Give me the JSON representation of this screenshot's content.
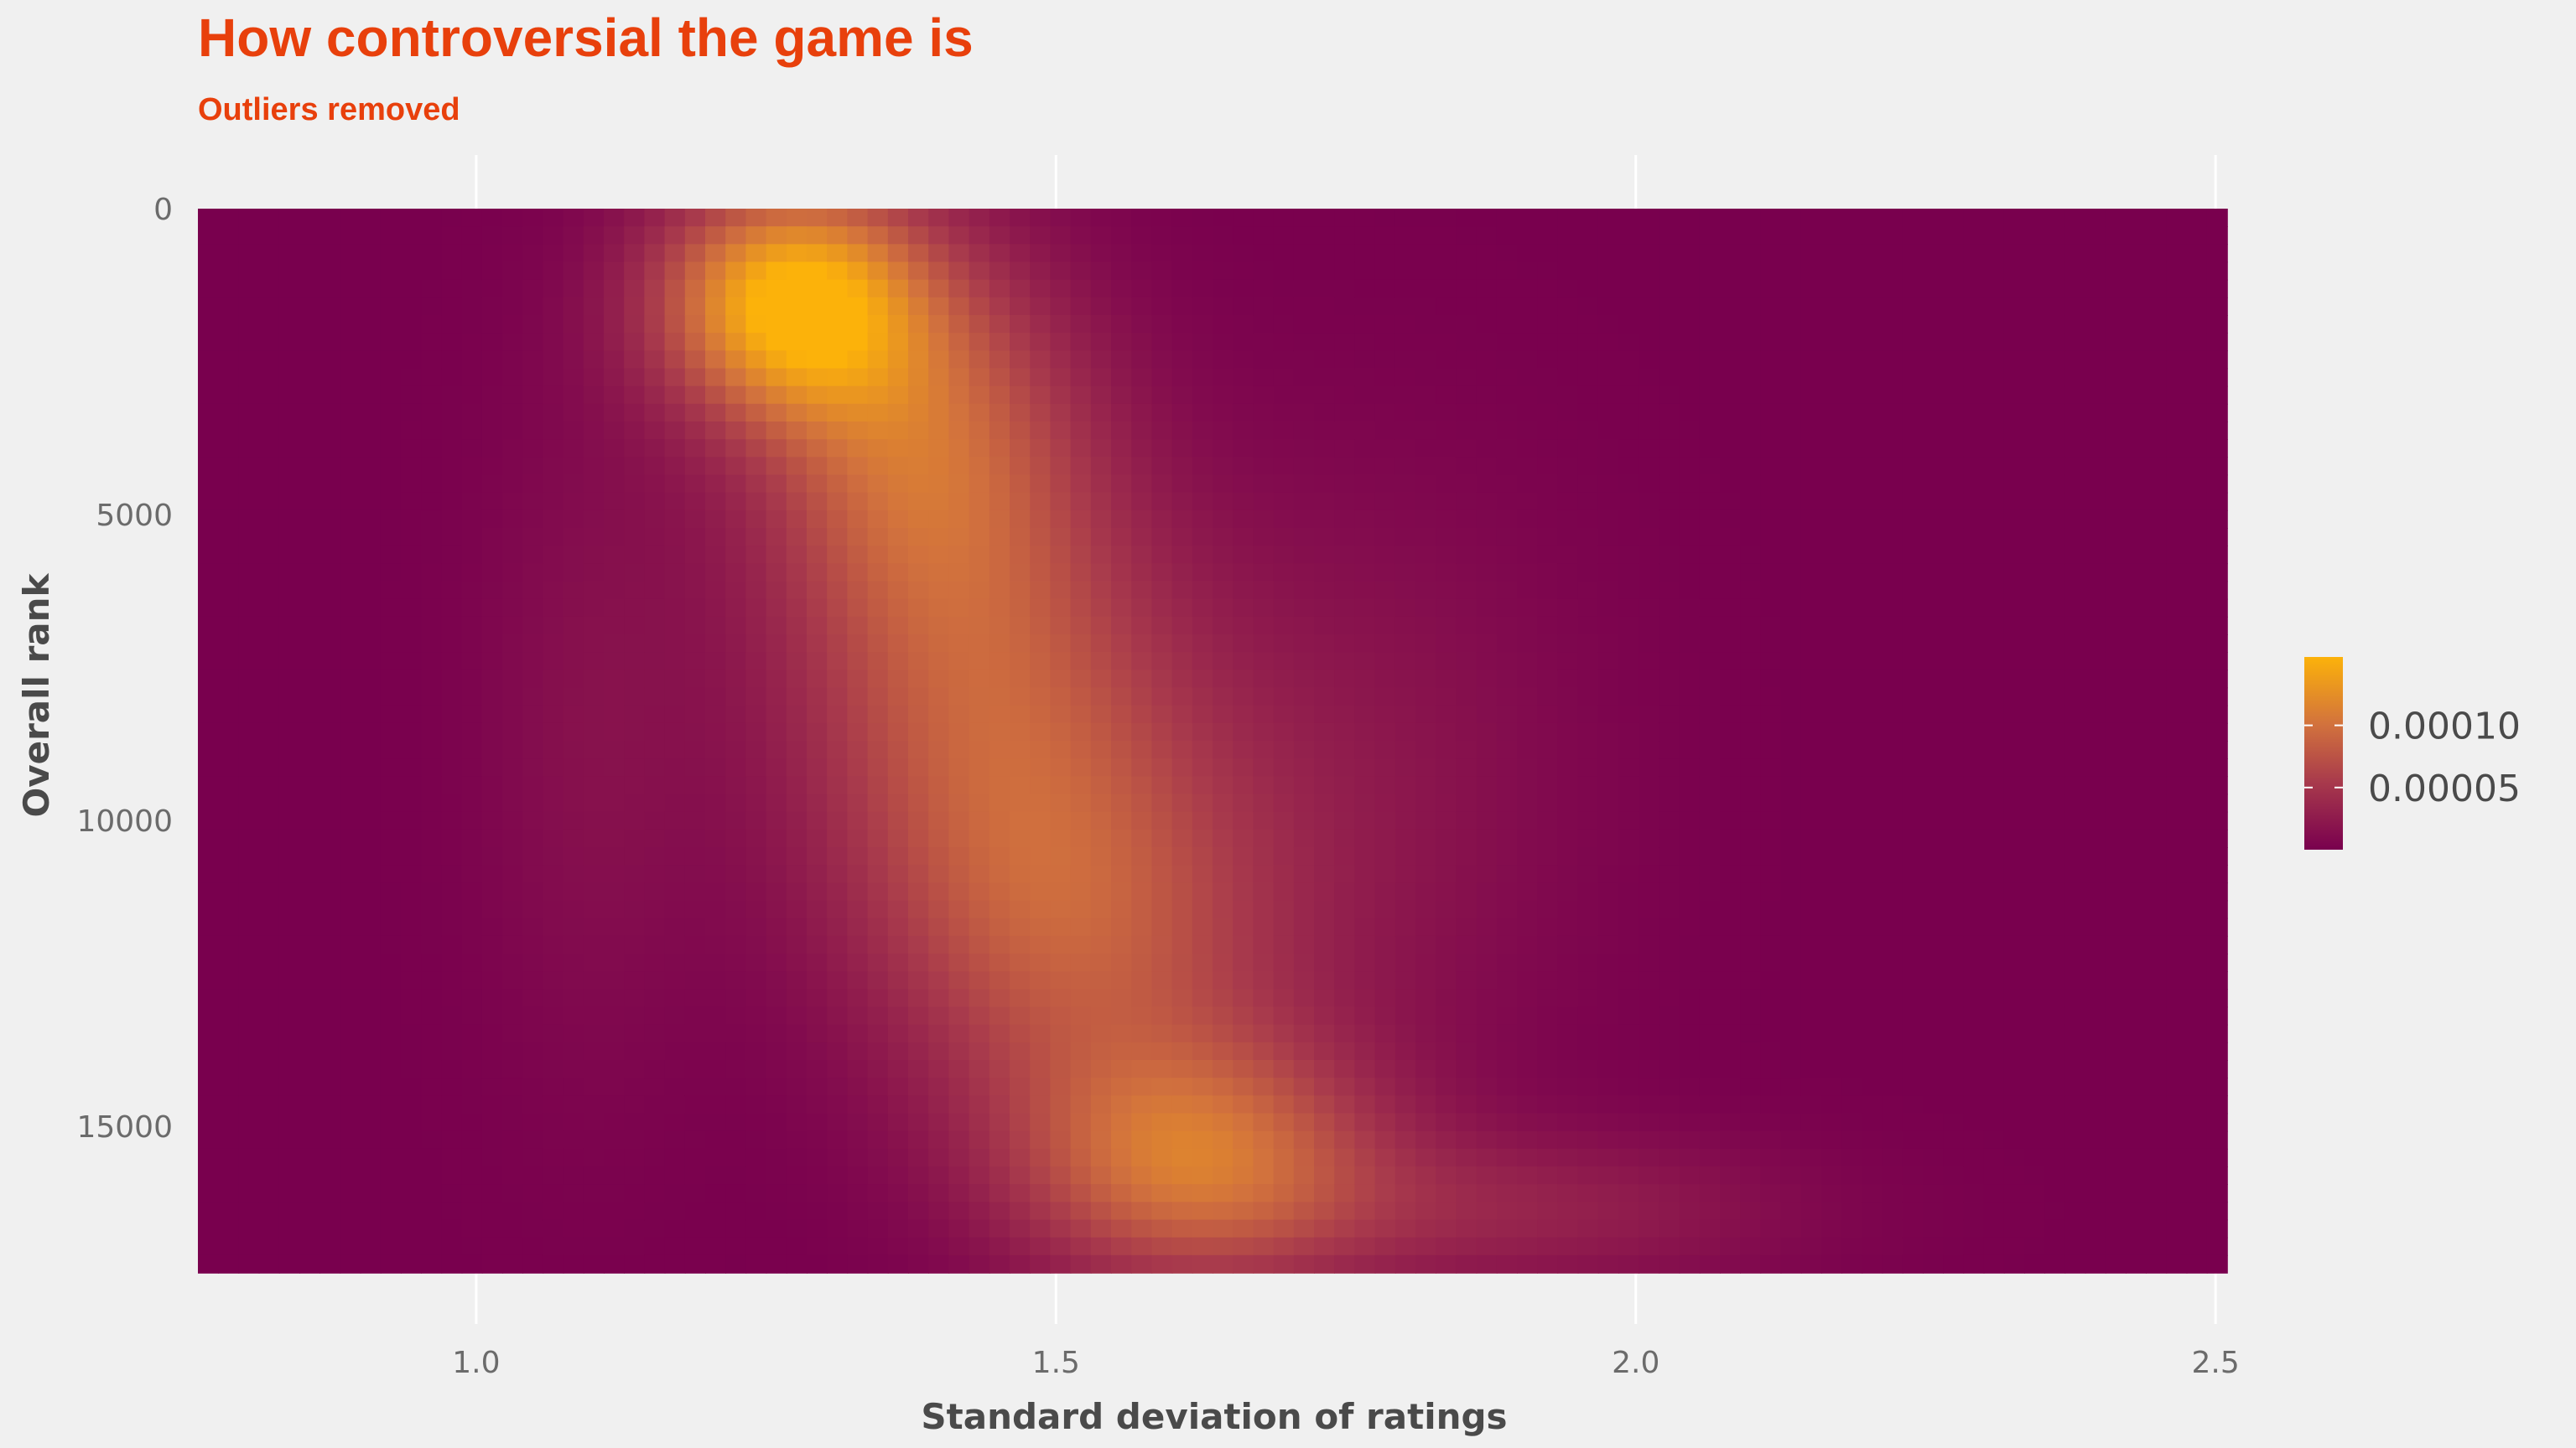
{
  "chart_data": {
    "type": "heatmap",
    "title": "How controversial the game is",
    "subtitle": "Outliers removed",
    "xlabel": "Standard deviation of ratings",
    "ylabel": "Overall rank",
    "xlim": [
      0.76,
      2.51
    ],
    "ylim": [
      0,
      17400
    ],
    "y_reversed": true,
    "x_ticks": [
      {
        "value": 1.0,
        "label": "1.0"
      },
      {
        "value": 1.5,
        "label": "1.5"
      },
      {
        "value": 2.0,
        "label": "2.0"
      },
      {
        "value": 2.5,
        "label": "2.5"
      }
    ],
    "y_ticks": [
      {
        "value": 0,
        "label": "0"
      },
      {
        "value": 5000,
        "label": "5000"
      },
      {
        "value": 10000,
        "label": "10000"
      },
      {
        "value": 15000,
        "label": "15000"
      }
    ],
    "density_components": [
      {
        "sd_center": 1.27,
        "rank_center": 1500,
        "sd_spread": 0.08,
        "rank_spread": 1300,
        "weight": 0.000145
      },
      {
        "sd_center": 1.38,
        "rank_center": 3800,
        "sd_spread": 0.1,
        "rank_spread": 2200,
        "weight": 8.5e-05
      },
      {
        "sd_center": 1.44,
        "rank_center": 8200,
        "sd_spread": 0.12,
        "rank_spread": 2600,
        "weight": 7.2e-05
      },
      {
        "sd_center": 1.52,
        "rank_center": 12000,
        "sd_spread": 0.12,
        "rank_spread": 2200,
        "weight": 6.5e-05
      },
      {
        "sd_center": 1.62,
        "rank_center": 15600,
        "sd_spread": 0.11,
        "rank_spread": 1400,
        "weight": 9.5e-05
      },
      {
        "sd_center": 1.9,
        "rank_center": 16400,
        "sd_spread": 0.16,
        "rank_spread": 900,
        "weight": 3e-05
      },
      {
        "sd_center": 1.75,
        "rank_center": 9500,
        "sd_spread": 0.14,
        "rank_spread": 3500,
        "weight": 2e-05
      },
      {
        "sd_center": 1.1,
        "rank_center": 8500,
        "sd_spread": 0.07,
        "rank_spread": 4000,
        "weight": 1.5e-05
      }
    ],
    "legend": {
      "position": "right",
      "range": [
        0,
        0.000155
      ],
      "ticks": [
        {
          "value": 5e-05,
          "label": "0.00005"
        },
        {
          "value": 0.0001,
          "label": "0.00010"
        }
      ]
    },
    "colors": {
      "low": "#79004e",
      "mid": "#c15c47",
      "high": "#fcb20a",
      "background": "#f0f0f0",
      "grid": "#ffffff",
      "title": "#e8400c"
    },
    "grid": true
  }
}
